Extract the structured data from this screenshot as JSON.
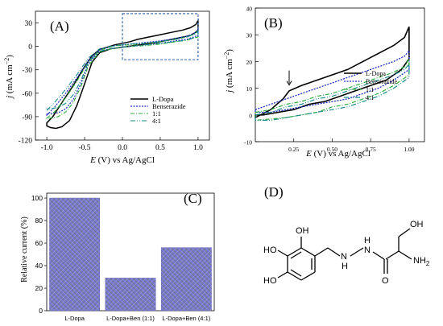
{
  "panels": {
    "A": {
      "label": "(A)"
    },
    "B": {
      "label": "(B)"
    },
    "C": {
      "label": "(C)"
    },
    "D": {
      "label": "(D)"
    }
  },
  "colors": {
    "ldopa": "#000000",
    "benserazide": "#1f2fbf",
    "r11": "#2eae3c",
    "r41": "#1a8a8a",
    "bar_top": "#7b7ff0",
    "bar_bottom": "#6f6f8a",
    "dashed_box": "#2b5fa6"
  },
  "chart_data": [
    {
      "panel": "A",
      "type": "line",
      "xlabel_italic": "E",
      "xlabel_rest": " (V) vs Ag/AgCl",
      "ylabel_italic": "j",
      "ylabel_rest": " (mA cm",
      "ylabel_sup": "−2",
      "ylabel_close": ")",
      "xlim": [
        -1.15,
        1.15
      ],
      "ylim": [
        -120,
        45
      ],
      "xticks": [
        "-1.0",
        "-0.5",
        "0.0",
        "0.5",
        "1.0"
      ],
      "xtick_values": [
        -1.0,
        -0.5,
        0.0,
        0.5,
        1.0
      ],
      "yticks": [
        "30",
        "0",
        "-30",
        "-60",
        "-90",
        "-120"
      ],
      "ytick_values": [
        30,
        0,
        -30,
        -60,
        -90,
        -120
      ],
      "legend_position": "right",
      "inset_box": {
        "x": [
          0.0,
          1.0
        ],
        "y": [
          -17,
          42
        ]
      },
      "series": [
        {
          "name": "L-Dopa",
          "color_key": "ldopa",
          "dash": "",
          "width": 1.5,
          "points": [
            [
              -1.0,
              -98
            ],
            [
              -0.92,
              -90
            ],
            [
              -0.8,
              -72
            ],
            [
              -0.65,
              -50
            ],
            [
              -0.5,
              -26
            ],
            [
              -0.4,
              -12
            ],
            [
              -0.3,
              -4
            ],
            [
              -0.1,
              2
            ],
            [
              0.0,
              4
            ],
            [
              0.1,
              6
            ],
            [
              0.2,
              9
            ],
            [
              0.35,
              12
            ],
            [
              0.5,
              15
            ],
            [
              0.65,
              18
            ],
            [
              0.8,
              21
            ],
            [
              0.9,
              24
            ],
            [
              0.97,
              28
            ],
            [
              1.0,
              33
            ],
            [
              1.0,
              20
            ],
            [
              0.9,
              14
            ],
            [
              0.75,
              11
            ],
            [
              0.6,
              8
            ],
            [
              0.45,
              5
            ],
            [
              0.3,
              3
            ],
            [
              0.15,
              1
            ],
            [
              0.0,
              -1
            ],
            [
              -0.15,
              -3
            ],
            [
              -0.3,
              -8
            ],
            [
              -0.4,
              -20
            ],
            [
              -0.5,
              -48
            ],
            [
              -0.6,
              -75
            ],
            [
              -0.7,
              -95
            ],
            [
              -0.8,
              -103
            ],
            [
              -0.88,
              -105
            ],
            [
              -0.95,
              -104
            ],
            [
              -1.0,
              -102
            ]
          ]
        },
        {
          "name": "Benserazide",
          "color_key": "benserazide",
          "dash": "2,1.5",
          "width": 1.2,
          "points": [
            [
              -1.0,
              -88
            ],
            [
              -0.9,
              -78
            ],
            [
              -0.75,
              -60
            ],
            [
              -0.6,
              -40
            ],
            [
              -0.45,
              -18
            ],
            [
              -0.3,
              -4
            ],
            [
              -0.1,
              1
            ],
            [
              0.1,
              3
            ],
            [
              0.3,
              5
            ],
            [
              0.5,
              7
            ],
            [
              0.7,
              10
            ],
            [
              0.85,
              13
            ],
            [
              0.95,
              17
            ],
            [
              1.0,
              22
            ],
            [
              1.0,
              14
            ],
            [
              0.85,
              9
            ],
            [
              0.7,
              7
            ],
            [
              0.5,
              4
            ],
            [
              0.3,
              2
            ],
            [
              0.1,
              0
            ],
            [
              -0.1,
              -2
            ],
            [
              -0.3,
              -6
            ],
            [
              -0.45,
              -22
            ],
            [
              -0.55,
              -48
            ],
            [
              -0.65,
              -68
            ],
            [
              -0.75,
              -80
            ],
            [
              -0.85,
              -85
            ],
            [
              -0.95,
              -86
            ],
            [
              -1.0,
              -86
            ]
          ]
        },
        {
          "name": "1:1",
          "color_key": "r11",
          "dash": "5,2,1,2",
          "width": 1.1,
          "points": [
            [
              -1.0,
              -92
            ],
            [
              -0.9,
              -84
            ],
            [
              -0.75,
              -66
            ],
            [
              -0.6,
              -44
            ],
            [
              -0.45,
              -20
            ],
            [
              -0.3,
              -5
            ],
            [
              -0.1,
              1
            ],
            [
              0.1,
              2
            ],
            [
              0.3,
              4
            ],
            [
              0.5,
              6
            ],
            [
              0.7,
              9
            ],
            [
              0.85,
              12
            ],
            [
              0.95,
              16
            ],
            [
              1.0,
              20
            ],
            [
              1.0,
              12
            ],
            [
              0.85,
              8
            ],
            [
              0.7,
              6
            ],
            [
              0.5,
              3
            ],
            [
              0.3,
              1
            ],
            [
              0.1,
              0
            ],
            [
              -0.1,
              -2
            ],
            [
              -0.3,
              -7
            ],
            [
              -0.45,
              -25
            ],
            [
              -0.55,
              -52
            ],
            [
              -0.65,
              -72
            ],
            [
              -0.75,
              -84
            ],
            [
              -0.85,
              -90
            ],
            [
              -0.95,
              -92
            ],
            [
              -1.0,
              -92
            ]
          ]
        },
        {
          "name": "4:1",
          "color_key": "r41",
          "dash": "6,2,1,2,1,2",
          "width": 1.1,
          "points": [
            [
              -1.0,
              -82
            ],
            [
              -0.9,
              -72
            ],
            [
              -0.75,
              -55
            ],
            [
              -0.6,
              -36
            ],
            [
              -0.45,
              -15
            ],
            [
              -0.3,
              -3
            ],
            [
              -0.1,
              1
            ],
            [
              0.1,
              3
            ],
            [
              0.3,
              4
            ],
            [
              0.5,
              6
            ],
            [
              0.7,
              9
            ],
            [
              0.85,
              12
            ],
            [
              0.95,
              15
            ],
            [
              1.0,
              19
            ],
            [
              1.0,
              13
            ],
            [
              0.85,
              8
            ],
            [
              0.7,
              6
            ],
            [
              0.5,
              4
            ],
            [
              0.3,
              2
            ],
            [
              0.1,
              0
            ],
            [
              -0.1,
              -2
            ],
            [
              -0.3,
              -6
            ],
            [
              -0.45,
              -20
            ],
            [
              -0.55,
              -44
            ],
            [
              -0.65,
              -62
            ],
            [
              -0.75,
              -73
            ],
            [
              -0.85,
              -78
            ],
            [
              -0.95,
              -80
            ],
            [
              -1.0,
              -80
            ]
          ]
        }
      ]
    },
    {
      "panel": "B",
      "type": "line",
      "xlabel_italic": "E",
      "xlabel_rest": " (V) vs Ag/AgCl",
      "ylabel_italic": "j",
      "ylabel_rest": " (mA cm",
      "ylabel_sup": "−2",
      "ylabel_close": ")",
      "xlim": [
        0.0,
        1.1
      ],
      "ylim": [
        -10,
        40
      ],
      "xticks": [
        "0.25",
        "0.50",
        "0.75",
        "1.00"
      ],
      "xtick_values": [
        0.25,
        0.5,
        0.75,
        1.0
      ],
      "yticks": [
        "40",
        "30",
        "20",
        "10",
        "0",
        "-10"
      ],
      "ytick_values": [
        40,
        30,
        20,
        10,
        0,
        -10
      ],
      "legend_position": "right",
      "arrow_at": [
        0.22,
        10
      ],
      "series": [
        {
          "name": "L-Dopa",
          "color_key": "ldopa",
          "dash": "",
          "width": 1.6,
          "points": [
            [
              0.0,
              -1
            ],
            [
              0.1,
              2
            ],
            [
              0.18,
              6
            ],
            [
              0.22,
              9
            ],
            [
              0.3,
              11
            ],
            [
              0.4,
              13
            ],
            [
              0.5,
              15
            ],
            [
              0.6,
              17
            ],
            [
              0.7,
              20
            ],
            [
              0.8,
              23
            ],
            [
              0.9,
              26
            ],
            [
              0.97,
              29
            ],
            [
              1.0,
              33
            ],
            [
              1.0,
              21
            ],
            [
              0.95,
              17
            ],
            [
              0.85,
              13
            ],
            [
              0.75,
              11
            ],
            [
              0.65,
              9
            ],
            [
              0.55,
              7
            ],
            [
              0.45,
              5
            ],
            [
              0.35,
              4
            ],
            [
              0.25,
              2
            ],
            [
              0.15,
              1
            ],
            [
              0.05,
              0
            ],
            [
              0.0,
              0
            ]
          ]
        },
        {
          "name": "Benserazide",
          "color_key": "benserazide",
          "dash": "2,1.5",
          "width": 1.3,
          "points": [
            [
              0.0,
              2
            ],
            [
              0.1,
              4
            ],
            [
              0.2,
              6
            ],
            [
              0.3,
              8
            ],
            [
              0.4,
              10
            ],
            [
              0.5,
              12
            ],
            [
              0.6,
              14
            ],
            [
              0.7,
              16
            ],
            [
              0.8,
              18
            ],
            [
              0.9,
              20
            ],
            [
              0.97,
              22
            ],
            [
              1.0,
              24
            ],
            [
              1.0,
              17
            ],
            [
              0.9,
              13
            ],
            [
              0.8,
              10
            ],
            [
              0.7,
              8
            ],
            [
              0.6,
              6
            ],
            [
              0.5,
              5
            ],
            [
              0.4,
              4
            ],
            [
              0.3,
              3
            ],
            [
              0.2,
              2
            ],
            [
              0.1,
              1
            ],
            [
              0.0,
              1
            ]
          ]
        },
        {
          "name": "1:1",
          "color_key": "r11",
          "dash": "5,2,1,2",
          "width": 1.2,
          "points": [
            [
              0.0,
              1
            ],
            [
              0.1,
              2
            ],
            [
              0.2,
              4
            ],
            [
              0.3,
              5
            ],
            [
              0.4,
              7
            ],
            [
              0.5,
              8
            ],
            [
              0.6,
              10
            ],
            [
              0.7,
              12
            ],
            [
              0.8,
              14
            ],
            [
              0.9,
              16
            ],
            [
              0.97,
              18
            ],
            [
              1.0,
              21
            ],
            [
              1.0,
              15
            ],
            [
              0.9,
              11
            ],
            [
              0.8,
              8
            ],
            [
              0.7,
              6
            ],
            [
              0.6,
              4
            ],
            [
              0.5,
              3
            ],
            [
              0.4,
              1
            ],
            [
              0.3,
              0
            ],
            [
              0.2,
              -1
            ],
            [
              0.1,
              -1.5
            ],
            [
              0.0,
              -2
            ]
          ]
        },
        {
          "name": "4:1",
          "color_key": "r41",
          "dash": "6,2,1,2,1,2",
          "width": 1.2,
          "points": [
            [
              0.0,
              0
            ],
            [
              0.1,
              1
            ],
            [
              0.2,
              3
            ],
            [
              0.3,
              4
            ],
            [
              0.4,
              6
            ],
            [
              0.5,
              7
            ],
            [
              0.6,
              9
            ],
            [
              0.7,
              11
            ],
            [
              0.8,
              13
            ],
            [
              0.9,
              15
            ],
            [
              0.97,
              17
            ],
            [
              1.0,
              19
            ],
            [
              1.0,
              14
            ],
            [
              0.9,
              10
            ],
            [
              0.8,
              7
            ],
            [
              0.7,
              5
            ],
            [
              0.6,
              3
            ],
            [
              0.5,
              2
            ],
            [
              0.4,
              1
            ],
            [
              0.3,
              0
            ],
            [
              0.2,
              -1
            ],
            [
              0.1,
              -2
            ],
            [
              0.0,
              -2
            ]
          ]
        }
      ]
    },
    {
      "panel": "C",
      "type": "bar",
      "ylabel": "Relative current (%)",
      "ylim": [
        0,
        100
      ],
      "yticks": [
        "0",
        "20",
        "40",
        "60",
        "80",
        "100"
      ],
      "ytick_values": [
        0,
        20,
        40,
        60,
        80,
        100
      ],
      "categories": [
        "L-Dopa",
        "L-Dopa+Ben (1:1)",
        "L-Dopa+Ben (4:1)"
      ],
      "values": [
        100,
        29,
        56
      ]
    }
  ],
  "structure": {
    "labels": {
      "oh_top_right": "OH",
      "oh_top": "OH",
      "ho_left": "HO",
      "ho_bottom": "HO",
      "nh1": "H",
      "nh1_n": "N",
      "nh2": "N",
      "nh2_h": "H",
      "nh2_sub": "NH",
      "nh2_sub_2": "2",
      "o": "O"
    }
  }
}
